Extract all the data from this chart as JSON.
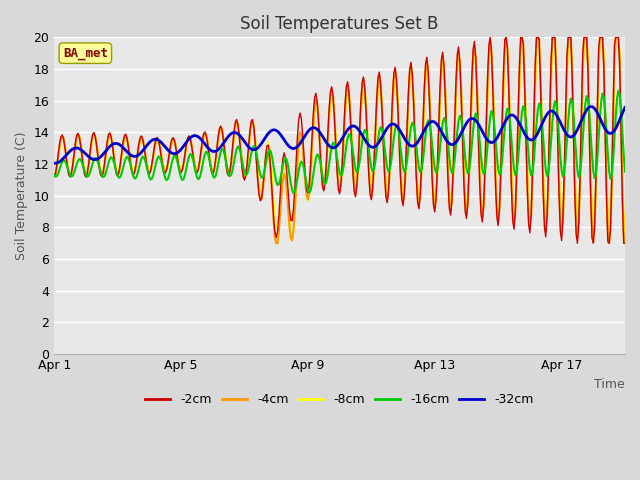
{
  "title": "Soil Temperatures Set B",
  "xlabel": "Time",
  "ylabel": "Soil Temperature (C)",
  "annotation": "BA_met",
  "ylim": [
    0,
    20
  ],
  "yticks": [
    0,
    2,
    4,
    6,
    8,
    10,
    12,
    14,
    16,
    18,
    20
  ],
  "xtick_labels": [
    "Apr 1",
    "Apr 5",
    "Apr 9",
    "Apr 13",
    "Apr 17"
  ],
  "xtick_positions": [
    0,
    4,
    8,
    12,
    16
  ],
  "series_colors": {
    "-2cm": "#cc0000",
    "-4cm": "#ff9900",
    "-8cm": "#ffff00",
    "-16cm": "#00cc00",
    "-32cm": "#0000cc"
  },
  "series_linewidths": {
    "-2cm": 1.0,
    "-4cm": 1.5,
    "-8cm": 1.2,
    "-16cm": 1.5,
    "-32cm": 2.0
  },
  "figure_bg": "#d9d9d9",
  "plot_bg": "#e8e8e8",
  "grid_color": "#ffffff",
  "title_fontsize": 12,
  "axis_label_fontsize": 9,
  "tick_fontsize": 9,
  "legend_fontsize": 9,
  "annotation_fontsize": 9,
  "n_points": 433
}
